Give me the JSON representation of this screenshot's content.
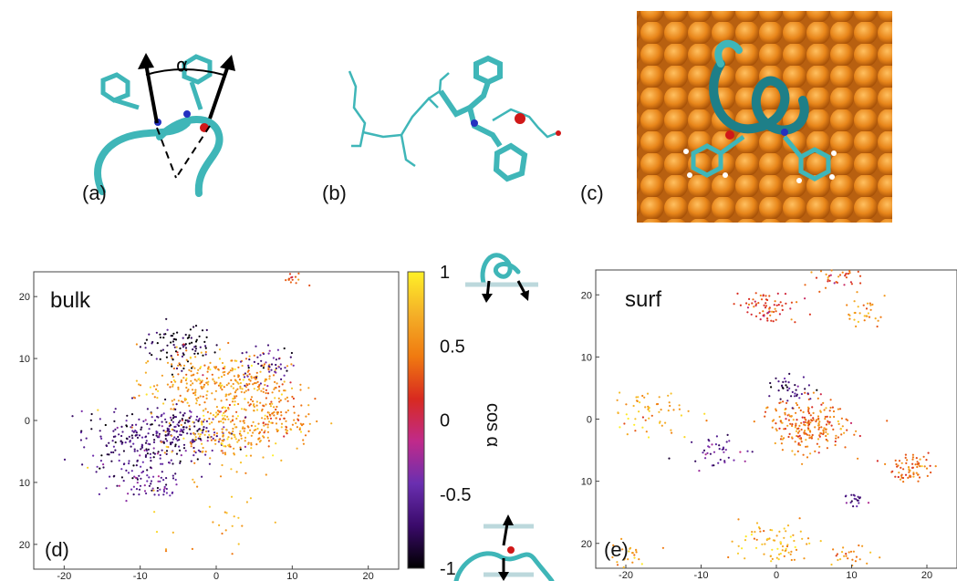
{
  "panels": {
    "a": {
      "label": "(a)",
      "angle_symbol": "α"
    },
    "b": {
      "label": "(b)"
    },
    "c": {
      "label": "(c)"
    },
    "d": {
      "label": "(d)"
    },
    "e": {
      "label": "(e)"
    }
  },
  "colors": {
    "peptide": "#3fb6b8",
    "surface": "#e8861a",
    "arrow": "#000000"
  },
  "chart_data": [
    {
      "type": "scatter",
      "title": "bulk",
      "x_ticks": [
        "-20",
        "-10",
        "0",
        "10",
        "20"
      ],
      "y_ticks": [
        "20",
        "10",
        "0",
        "10",
        "20"
      ],
      "xlim": [
        -24,
        24
      ],
      "ylim": [
        -24,
        24
      ],
      "grid": false,
      "clusters": [
        {
          "cx": -5,
          "cy": 12,
          "spread": 2.5,
          "cos_alpha": -0.9,
          "n": 90
        },
        {
          "cx": -2,
          "cy": 6,
          "spread": 4,
          "cos_alpha": 0.6,
          "n": 220
        },
        {
          "cx": 5,
          "cy": 6,
          "spread": 3,
          "cos_alpha": 0.5,
          "n": 120
        },
        {
          "cx": -10,
          "cy": -3,
          "spread": 4,
          "cos_alpha": -0.7,
          "n": 200
        },
        {
          "cx": -4,
          "cy": -2,
          "spread": 3,
          "cos_alpha": -0.6,
          "n": 140
        },
        {
          "cx": 2,
          "cy": -2,
          "spread": 3.5,
          "cos_alpha": 0.65,
          "n": 200
        },
        {
          "cx": 8,
          "cy": 0,
          "spread": 2.5,
          "cos_alpha": 0.4,
          "n": 90
        },
        {
          "cx": 7,
          "cy": 9,
          "spread": 2,
          "cos_alpha": -0.6,
          "n": 50
        },
        {
          "cx": -9,
          "cy": -10,
          "spread": 2.5,
          "cos_alpha": -0.5,
          "n": 70
        },
        {
          "cx": 10,
          "cy": 23,
          "spread": 0.8,
          "cos_alpha": 0.3,
          "n": 15
        },
        {
          "cx": 0,
          "cy": -15,
          "spread": 5,
          "cos_alpha": 0.7,
          "n": 30
        }
      ]
    },
    {
      "type": "scatter",
      "title": "surf",
      "x_ticks": [
        "-20",
        "-10",
        "0",
        "10",
        "20"
      ],
      "y_ticks": [
        "20",
        "10",
        "0",
        "10",
        "20"
      ],
      "xlim": [
        -24,
        24
      ],
      "ylim": [
        -24,
        24
      ],
      "grid": false,
      "clusters": [
        {
          "cx": -1,
          "cy": 18,
          "spread": 2,
          "cos_alpha": 0.2,
          "n": 70
        },
        {
          "cx": 8,
          "cy": 23,
          "spread": 1.5,
          "cos_alpha": 0.3,
          "n": 40
        },
        {
          "cx": 12,
          "cy": 17,
          "spread": 1.5,
          "cos_alpha": 0.6,
          "n": 30
        },
        {
          "cx": 4,
          "cy": -1,
          "spread": 3,
          "cos_alpha": 0.4,
          "n": 230
        },
        {
          "cx": 2,
          "cy": 5,
          "spread": 1.5,
          "cos_alpha": -0.7,
          "n": 40
        },
        {
          "cx": 18,
          "cy": -8,
          "spread": 1.5,
          "cos_alpha": 0.4,
          "n": 70
        },
        {
          "cx": -17,
          "cy": 1,
          "spread": 3,
          "cos_alpha": 0.7,
          "n": 60
        },
        {
          "cx": -8,
          "cy": -5,
          "spread": 2,
          "cos_alpha": -0.5,
          "n": 40
        },
        {
          "cx": 0,
          "cy": -20,
          "spread": 2.5,
          "cos_alpha": 0.7,
          "n": 80
        },
        {
          "cx": 10,
          "cy": -22,
          "spread": 1.5,
          "cos_alpha": 0.5,
          "n": 25
        },
        {
          "cx": -20,
          "cy": -22,
          "spread": 1.5,
          "cos_alpha": 0.6,
          "n": 25
        },
        {
          "cx": 10,
          "cy": -13,
          "spread": 1,
          "cos_alpha": -0.6,
          "n": 20
        }
      ]
    }
  ],
  "colorbar": {
    "label": "cos α",
    "ticks": [
      "1",
      "0.5",
      "0",
      "-0.5",
      "-1"
    ],
    "range": [
      -1,
      1
    ],
    "stops": [
      "#000000",
      "#3a0a6a",
      "#6a2fb0",
      "#c02a8a",
      "#d82a20",
      "#f07a10",
      "#f4b028",
      "#fff028"
    ]
  }
}
